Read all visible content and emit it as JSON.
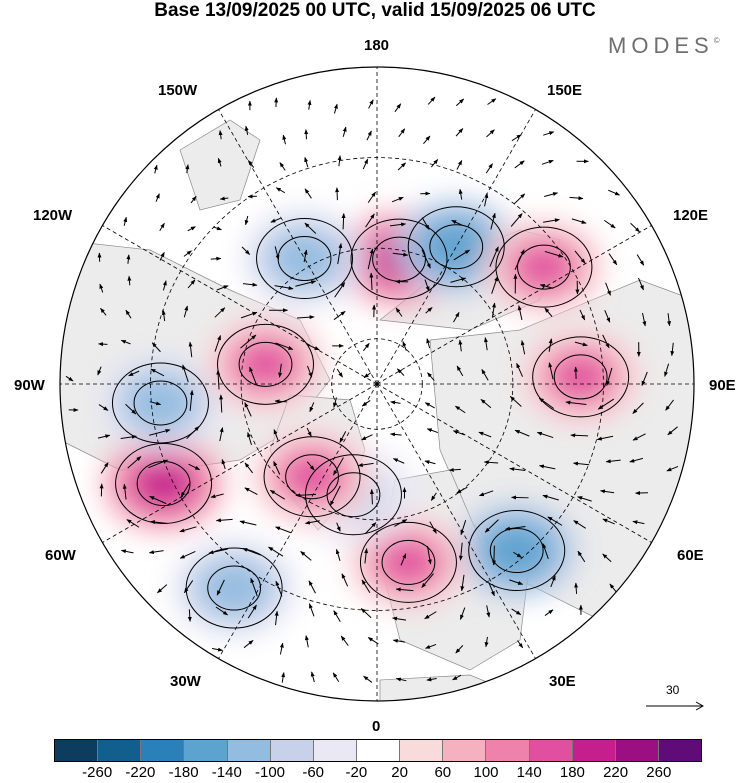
{
  "title": "Base 13/09/2025 00 UTC, valid 15/09/2025 06 UTC",
  "brand": "MODES",
  "brand_mark": "©",
  "longitude_labels": {
    "lon_180": "180",
    "lon_150w": "150W",
    "lon_150e": "150E",
    "lon_120w": "120W",
    "lon_120e": "120E",
    "lon_90w": "90W",
    "lon_90e": "90E",
    "lon_60w": "60W",
    "lon_60e": "60E",
    "lon_30w": "30W",
    "lon_30e": "30E",
    "lon_0": "0"
  },
  "wind_reference": {
    "value": "30"
  },
  "colorbar": {
    "colors": [
      "#0c3d5e",
      "#125f8e",
      "#2a81b9",
      "#5da3cf",
      "#93bde0",
      "#c7d2ea",
      "#e9e8f4",
      "#ffffff",
      "#fadbdb",
      "#f6b1c0",
      "#ef82aa",
      "#e04fa0",
      "#c41f8d",
      "#9b0f83",
      "#5f0c79"
    ],
    "ticks": [
      "-260",
      "-220",
      "-180",
      "-140",
      "-100",
      "-60",
      "-20",
      "20",
      "60",
      "100",
      "140",
      "180",
      "220",
      "260"
    ]
  },
  "anomaly_centers": [
    {
      "lon": 170,
      "lat": 62,
      "sign": "positive",
      "level": 180
    },
    {
      "lon": 150,
      "lat": 55,
      "sign": "negative",
      "level": -180
    },
    {
      "lon": 125,
      "lat": 45,
      "sign": "positive",
      "level": 140
    },
    {
      "lon": 92,
      "lat": 45,
      "sign": "positive",
      "level": 140
    },
    {
      "lon": 40,
      "lat": 42,
      "sign": "negative",
      "level": -180
    },
    {
      "lon": 10,
      "lat": 50,
      "sign": "positive",
      "level": 140
    },
    {
      "lon": -12,
      "lat": 65,
      "sign": "negative",
      "level": -100
    },
    {
      "lon": -35,
      "lat": 65,
      "sign": "positive",
      "level": 140
    },
    {
      "lon": -65,
      "lat": 38,
      "sign": "positive",
      "level": 180
    },
    {
      "lon": -35,
      "lat": 35,
      "sign": "negative",
      "level": -140
    },
    {
      "lon": -85,
      "lat": 42,
      "sign": "negative",
      "level": -140
    },
    {
      "lon": -100,
      "lat": 65,
      "sign": "positive",
      "level": 140
    },
    {
      "lon": -150,
      "lat": 58,
      "sign": "negative",
      "level": -140
    }
  ]
}
